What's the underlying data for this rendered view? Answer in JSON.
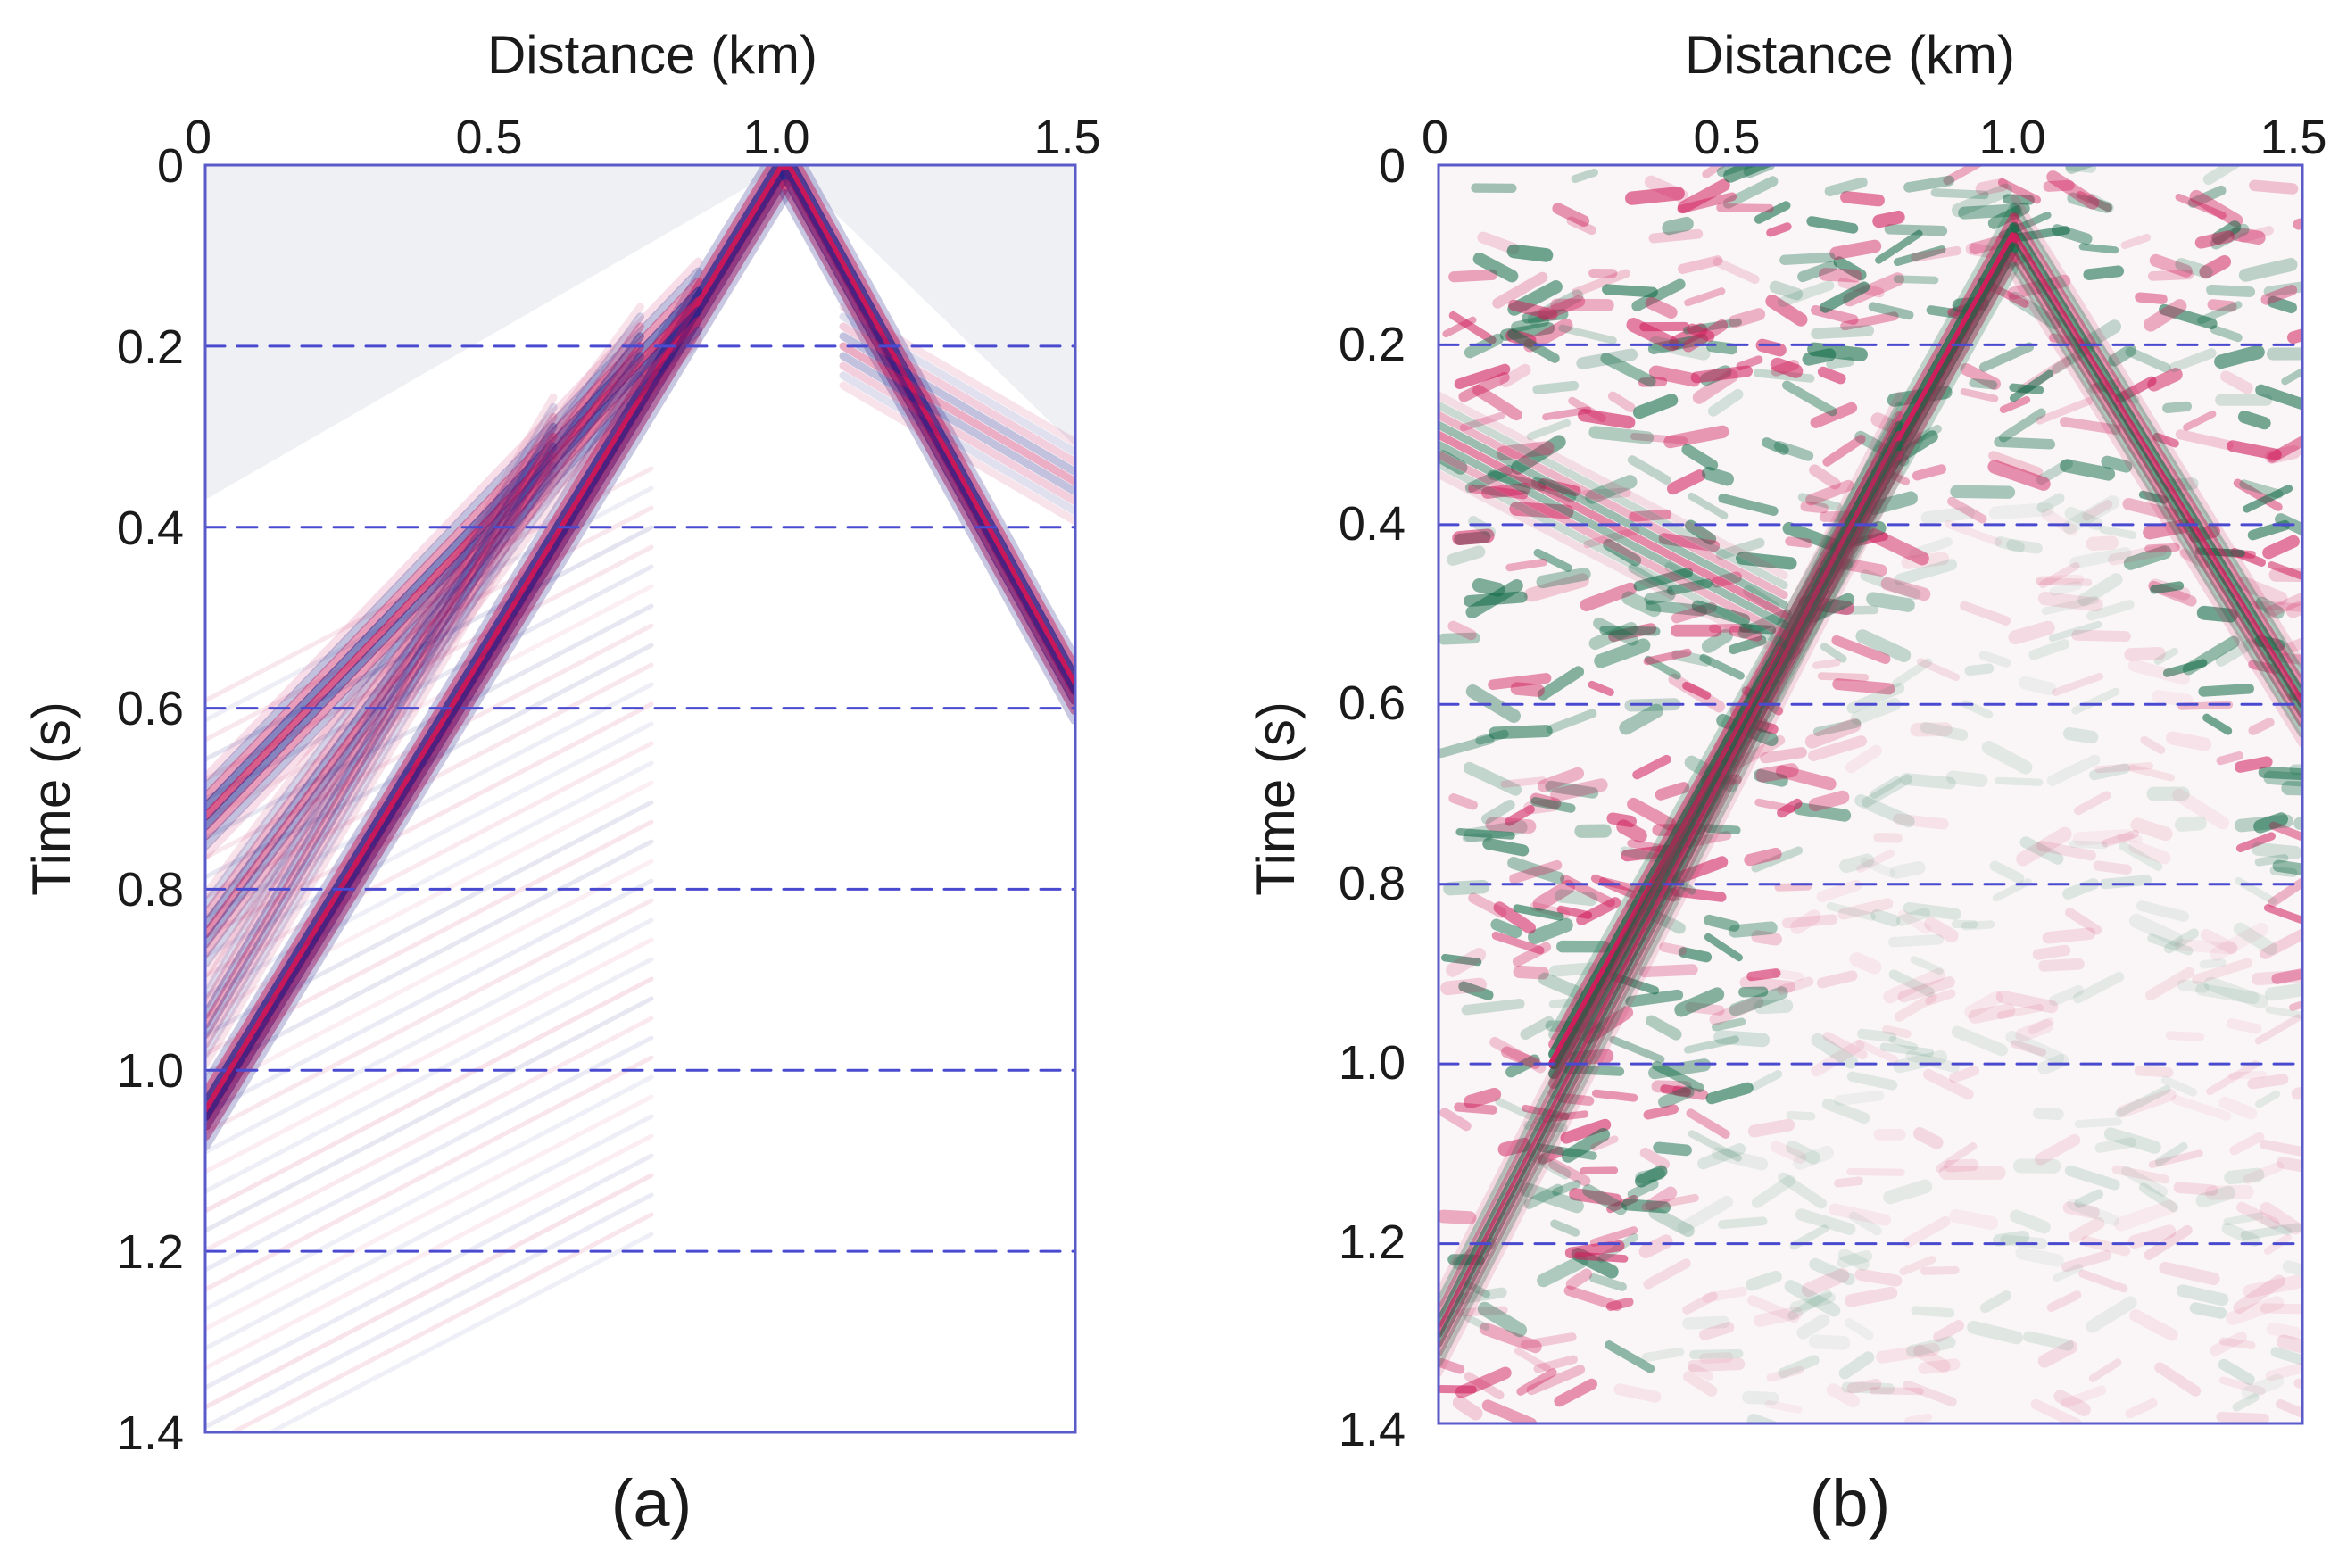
{
  "colors": {
    "panel_a_positive": "#c8185a",
    "panel_a_negative": "#23238c",
    "panel_b_positive": "#d01e5c",
    "panel_b_negative": "#0f6a45",
    "grid": "#4a4ad0",
    "frame": "#5a5ac8",
    "background_shading": "#eef0f4"
  },
  "chart_data": [
    {
      "id": "a",
      "type": "heatmap",
      "caption": "(a)",
      "xlabel": "Distance (km)",
      "ylabel": "Time (s)",
      "x_ticks": [
        "0",
        "0.5",
        "1.0",
        "1.5"
      ],
      "x_tick_values": [
        0,
        0.5,
        1.0,
        1.5
      ],
      "y_ticks": [
        "0",
        "0.2",
        "0.4",
        "0.6",
        "0.8",
        "1.0",
        "1.2",
        "1.4"
      ],
      "y_tick_values": [
        0,
        0.2,
        0.4,
        0.6,
        0.8,
        1.0,
        1.2,
        1.4
      ],
      "xlim": [
        0,
        1.5
      ],
      "ylim": [
        0,
        1.4
      ],
      "y_inverted": true,
      "gridlines_y": [
        0.2,
        0.4,
        0.6,
        0.8,
        1.0,
        1.2,
        1.4
      ],
      "grid_style": "dashed",
      "source_x": 1.0,
      "events": [
        {
          "name": "direct-wave-left",
          "from": [
            1.0,
            0.0
          ],
          "to": [
            0.0,
            1.05
          ],
          "strength": 1.0
        },
        {
          "name": "direct-wave-right",
          "from": [
            1.0,
            0.0
          ],
          "to": [
            1.5,
            0.58
          ],
          "strength": 1.0
        },
        {
          "name": "refraction-1",
          "from": [
            0.85,
            0.15
          ],
          "to": [
            0.0,
            0.72
          ],
          "strength": 0.7
        },
        {
          "name": "refraction-2",
          "from": [
            0.75,
            0.2
          ],
          "to": [
            0.0,
            0.85
          ],
          "strength": 0.5
        },
        {
          "name": "refraction-3",
          "from": [
            0.6,
            0.3
          ],
          "to": [
            0.0,
            0.95
          ],
          "strength": 0.4
        },
        {
          "name": "refraction-right",
          "from": [
            1.1,
            0.2
          ],
          "to": [
            1.5,
            0.35
          ],
          "strength": 0.35
        }
      ]
    },
    {
      "id": "b",
      "type": "heatmap",
      "caption": "(b)",
      "xlabel": "Distance (km)",
      "ylabel": "Time (s)",
      "x_ticks": [
        "0",
        "0.5",
        "1.0",
        "1.5"
      ],
      "x_tick_values": [
        0,
        0.5,
        1.0,
        1.5
      ],
      "y_ticks": [
        "0",
        "0.2",
        "0.4",
        "0.6",
        "0.8",
        "1.0",
        "1.2",
        "1.4"
      ],
      "y_tick_values": [
        0,
        0.2,
        0.4,
        0.6,
        0.8,
        1.0,
        1.2,
        1.4
      ],
      "xlim": [
        0,
        1.5
      ],
      "ylim": [
        0,
        1.4
      ],
      "y_inverted": true,
      "gridlines_y": [
        0.2,
        0.4,
        0.6,
        0.8,
        1.0,
        1.2,
        1.4
      ],
      "grid_style": "dashed",
      "apex": [
        1.0,
        0.08
      ],
      "events": [
        {
          "name": "hyperbola-left",
          "from": [
            1.0,
            0.08
          ],
          "to": [
            0.2,
            1.0
          ],
          "strength": 1.0
        },
        {
          "name": "hyperbola-right",
          "from": [
            1.0,
            0.08
          ],
          "to": [
            1.5,
            0.6
          ],
          "strength": 0.8
        },
        {
          "name": "event-left-2",
          "from": [
            0.8,
            0.3
          ],
          "to": [
            0.0,
            1.3
          ],
          "strength": 0.7
        },
        {
          "name": "event-left-3",
          "from": [
            0.6,
            0.5
          ],
          "to": [
            0.0,
            0.3
          ],
          "strength": 0.5
        }
      ]
    }
  ]
}
